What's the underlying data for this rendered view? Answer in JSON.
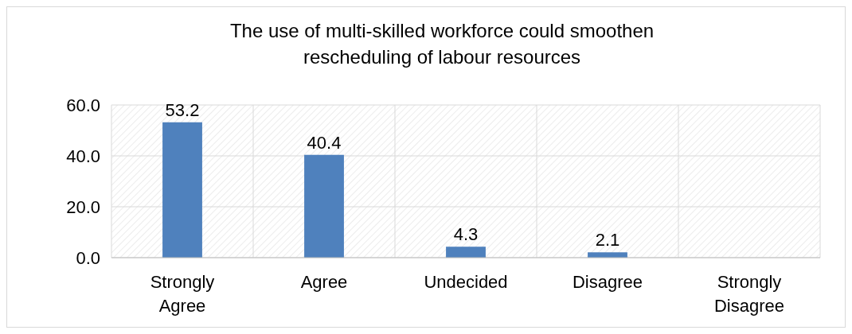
{
  "chart_data": {
    "type": "bar",
    "title": "The use of multi-skilled workforce could smoothen rescheduling of labour resources",
    "categories": [
      "Strongly Agree",
      "Agree",
      "Undecided",
      "Disagree",
      "Strongly Disagree"
    ],
    "values": [
      53.2,
      40.4,
      4.3,
      2.1,
      null
    ],
    "color": "#4f81bd",
    "ylim": [
      0,
      60
    ],
    "yticks": [
      {
        "value": 0,
        "label": "0.0"
      },
      {
        "value": 20,
        "label": "20.0"
      },
      {
        "value": 40,
        "label": "40.0"
      },
      {
        "value": 60,
        "label": "60.0"
      }
    ],
    "grid": true,
    "data_labels": true
  }
}
